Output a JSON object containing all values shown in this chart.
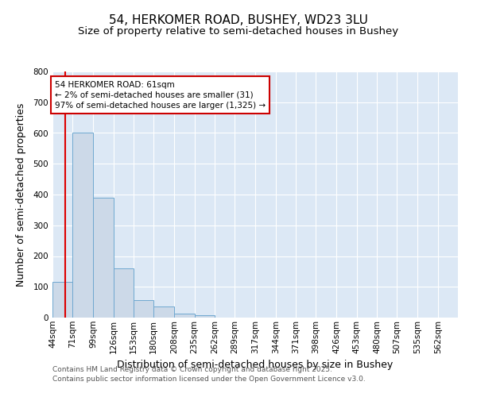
{
  "title_line1": "54, HERKOMER ROAD, BUSHEY, WD23 3LU",
  "title_line2": "Size of property relative to semi-detached houses in Bushey",
  "xlabel": "Distribution of semi-detached houses by size in Bushey",
  "ylabel": "Number of semi-detached properties",
  "footer_line1": "Contains HM Land Registry data © Crown copyright and database right 2025.",
  "footer_line2": "Contains public sector information licensed under the Open Government Licence v3.0.",
  "bin_edges": [
    44,
    71,
    99,
    126,
    153,
    180,
    208,
    235,
    262,
    289,
    317,
    344,
    371,
    398,
    426,
    453,
    480,
    507,
    535,
    562,
    589
  ],
  "bar_heights": [
    117,
    600,
    390,
    160,
    57,
    35,
    13,
    7,
    0,
    0,
    0,
    0,
    0,
    0,
    0,
    0,
    0,
    0,
    0,
    0
  ],
  "bar_color": "#ccd9e8",
  "bar_edge_color": "#6fa8d0",
  "property_size": 61,
  "red_line_color": "#dd0000",
  "annotation_text": "54 HERKOMER ROAD: 61sqm\n← 2% of semi-detached houses are smaller (31)\n97% of semi-detached houses are larger (1,325) →",
  "annotation_box_color": "#ffffff",
  "annotation_box_edge_color": "#cc0000",
  "ylim": [
    0,
    800
  ],
  "yticks": [
    0,
    100,
    200,
    300,
    400,
    500,
    600,
    700,
    800
  ],
  "plot_bg_color": "#dce8f5",
  "fig_bg_color": "#ffffff",
  "grid_color": "#ffffff",
  "tick_label_fontsize": 7.5,
  "axis_label_fontsize": 9,
  "title_fontsize1": 11,
  "title_fontsize2": 9.5,
  "footer_fontsize": 6.5,
  "footer_color": "#555555"
}
